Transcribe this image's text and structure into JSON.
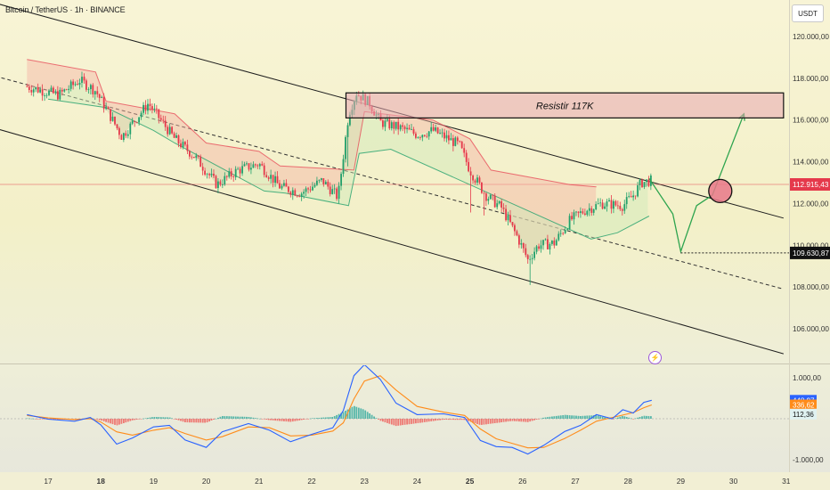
{
  "header": {
    "title": "Bitcoin / TetherUS · 1h · BINANCE",
    "unit": "USDT"
  },
  "annotations": {
    "resist_label": "Resistir  117K",
    "flash_icon": "lightning-icon"
  },
  "colors": {
    "up": "#22a06b",
    "down": "#e5394b",
    "cloud_red": "#f4b3a4",
    "cloud_green": "#cfe8b8",
    "macd_line": "#2962ff",
    "signal_line": "#ff8c1a"
  },
  "chart_data": [
    {
      "type": "candlestick",
      "title": "Bitcoin / TetherUS · 1h · BINANCE",
      "y_axis": {
        "ticks": [
          "120.000,00",
          "118.000,00",
          "116.000,00",
          "114.000,00",
          "112.000,00",
          "110.000,00",
          "108.000,00",
          "106.000,00"
        ],
        "range": [
          104500,
          121000
        ]
      },
      "x_axis": {
        "ticks": [
          "17",
          "18",
          "19",
          "20",
          "21",
          "22",
          "23",
          "24",
          "25",
          "26",
          "27",
          "28",
          "29",
          "30",
          "31"
        ],
        "bold_ticks": [
          "18",
          "25"
        ]
      },
      "price_labels": {
        "current": "112.915,43",
        "marked": "109.630,87"
      },
      "path": [
        [
          16.6,
          117600
        ],
        [
          17.2,
          117200
        ],
        [
          17.6,
          117900
        ],
        [
          17.9,
          117400
        ],
        [
          18.2,
          116100
        ],
        [
          18.4,
          115200
        ],
        [
          18.9,
          116800
        ],
        [
          19.4,
          115100
        ],
        [
          19.8,
          114200
        ],
        [
          20.2,
          112900
        ],
        [
          20.6,
          113600
        ],
        [
          21.0,
          113900
        ],
        [
          21.4,
          112800
        ],
        [
          21.8,
          112500
        ],
        [
          22.2,
          113100
        ],
        [
          22.5,
          112300
        ],
        [
          22.7,
          116300
        ],
        [
          22.85,
          117300
        ],
        [
          23.1,
          116800
        ],
        [
          23.3,
          115900
        ],
        [
          23.7,
          115600
        ],
        [
          24.0,
          115300
        ],
        [
          24.3,
          115500
        ],
        [
          24.8,
          114800
        ],
        [
          25.0,
          113600
        ],
        [
          25.3,
          112400
        ],
        [
          25.6,
          111800
        ],
        [
          25.9,
          110400
        ],
        [
          26.1,
          109300
        ],
        [
          26.3,
          110000
        ],
        [
          26.6,
          110100
        ],
        [
          26.9,
          111200
        ],
        [
          27.2,
          111700
        ],
        [
          27.5,
          112000
        ],
        [
          27.9,
          111900
        ],
        [
          28.1,
          112400
        ],
        [
          28.25,
          113000
        ],
        [
          28.45,
          113100
        ]
      ],
      "supertrend": {
        "red": [
          [
            16.6,
            118900
          ],
          [
            17.9,
            118300
          ],
          [
            18.1,
            116900
          ],
          [
            19.4,
            116300
          ],
          [
            20.0,
            114900
          ],
          [
            21.0,
            114500
          ],
          [
            21.4,
            113800
          ],
          [
            22.8,
            113600
          ],
          [
            23.0,
            116400
          ],
          [
            24.3,
            116000
          ],
          [
            25.0,
            115100
          ],
          [
            25.4,
            113600
          ],
          [
            26.9,
            112900
          ],
          [
            27.4,
            112800
          ]
        ],
        "green": [
          [
            17.0,
            117000
          ],
          [
            18.1,
            116600
          ],
          [
            19.0,
            115500
          ],
          [
            19.4,
            114900
          ],
          [
            21.1,
            112600
          ],
          [
            21.5,
            112500
          ],
          [
            22.7,
            111900
          ],
          [
            22.9,
            114400
          ],
          [
            23.5,
            114600
          ],
          [
            27.3,
            110300
          ],
          [
            27.8,
            110600
          ],
          [
            28.4,
            111400
          ]
        ]
      },
      "annotations": {
        "resistance_box": {
          "label": "Resistir  117K",
          "y_range": [
            116100,
            117300
          ],
          "x_range": [
            22.65,
            30.95
          ]
        },
        "channel_upper": [
          [
            16.0,
            121600
          ],
          [
            30.95,
            111300
          ]
        ],
        "channel_mid": [
          [
            16.0,
            118100
          ],
          [
            30.95,
            107900
          ]
        ],
        "channel_lower": [
          [
            16.0,
            115600
          ],
          [
            30.95,
            104800
          ]
        ],
        "projection": [
          [
            28.4,
            113200
          ],
          [
            28.85,
            111500
          ],
          [
            29.0,
            109700
          ],
          [
            29.3,
            111900
          ],
          [
            29.6,
            112400
          ],
          [
            30.2,
            116300
          ]
        ],
        "circle_marker": [
          29.75,
          112600
        ],
        "current_price_line": 112915.43,
        "marked_price_line": {
          "price": 109630.87,
          "from_x": 29.0
        }
      }
    },
    {
      "type": "macd",
      "y_axis": {
        "ticks": [
          "1.000,00",
          "-1.000,00"
        ],
        "range": [
          -1500,
          1500
        ]
      },
      "value_labels": {
        "macd": "448,97",
        "signal": "336,62",
        "histogram": "112,36"
      },
      "macd_line": [
        [
          16.6,
          100
        ],
        [
          17.0,
          -10
        ],
        [
          17.5,
          -60
        ],
        [
          17.8,
          30
        ],
        [
          18.0,
          -150
        ],
        [
          18.3,
          -620
        ],
        [
          18.6,
          -470
        ],
        [
          19.0,
          -200
        ],
        [
          19.3,
          -160
        ],
        [
          19.6,
          -520
        ],
        [
          20.0,
          -700
        ],
        [
          20.3,
          -320
        ],
        [
          20.8,
          -120
        ],
        [
          21.2,
          -280
        ],
        [
          21.6,
          -560
        ],
        [
          22.0,
          -380
        ],
        [
          22.4,
          -220
        ],
        [
          22.6,
          200
        ],
        [
          22.8,
          1050
        ],
        [
          23.0,
          1320
        ],
        [
          23.3,
          960
        ],
        [
          23.6,
          380
        ],
        [
          24.0,
          100
        ],
        [
          24.5,
          120
        ],
        [
          24.9,
          30
        ],
        [
          25.2,
          -530
        ],
        [
          25.5,
          -680
        ],
        [
          25.8,
          -700
        ],
        [
          26.1,
          -860
        ],
        [
          26.4,
          -650
        ],
        [
          26.8,
          -310
        ],
        [
          27.1,
          -160
        ],
        [
          27.4,
          100
        ],
        [
          27.7,
          0
        ],
        [
          27.9,
          220
        ],
        [
          28.1,
          140
        ],
        [
          28.3,
          400
        ],
        [
          28.45,
          449
        ]
      ],
      "signal_line": [
        [
          16.6,
          80
        ],
        [
          17.0,
          20
        ],
        [
          17.5,
          -20
        ],
        [
          17.8,
          0
        ],
        [
          18.0,
          -80
        ],
        [
          18.3,
          -320
        ],
        [
          18.6,
          -400
        ],
        [
          19.0,
          -280
        ],
        [
          19.3,
          -220
        ],
        [
          19.6,
          -360
        ],
        [
          20.0,
          -520
        ],
        [
          20.3,
          -440
        ],
        [
          20.8,
          -200
        ],
        [
          21.2,
          -220
        ],
        [
          21.6,
          -420
        ],
        [
          22.0,
          -400
        ],
        [
          22.4,
          -300
        ],
        [
          22.6,
          -100
        ],
        [
          22.8,
          480
        ],
        [
          23.0,
          920
        ],
        [
          23.3,
          1050
        ],
        [
          23.6,
          700
        ],
        [
          24.0,
          300
        ],
        [
          24.5,
          160
        ],
        [
          24.9,
          80
        ],
        [
          25.2,
          -250
        ],
        [
          25.5,
          -490
        ],
        [
          25.8,
          -600
        ],
        [
          26.1,
          -710
        ],
        [
          26.4,
          -700
        ],
        [
          26.8,
          -480
        ],
        [
          27.1,
          -280
        ],
        [
          27.4,
          -60
        ],
        [
          27.7,
          30
        ],
        [
          27.9,
          90
        ],
        [
          28.1,
          150
        ],
        [
          28.3,
          270
        ],
        [
          28.45,
          337
        ]
      ]
    }
  ]
}
